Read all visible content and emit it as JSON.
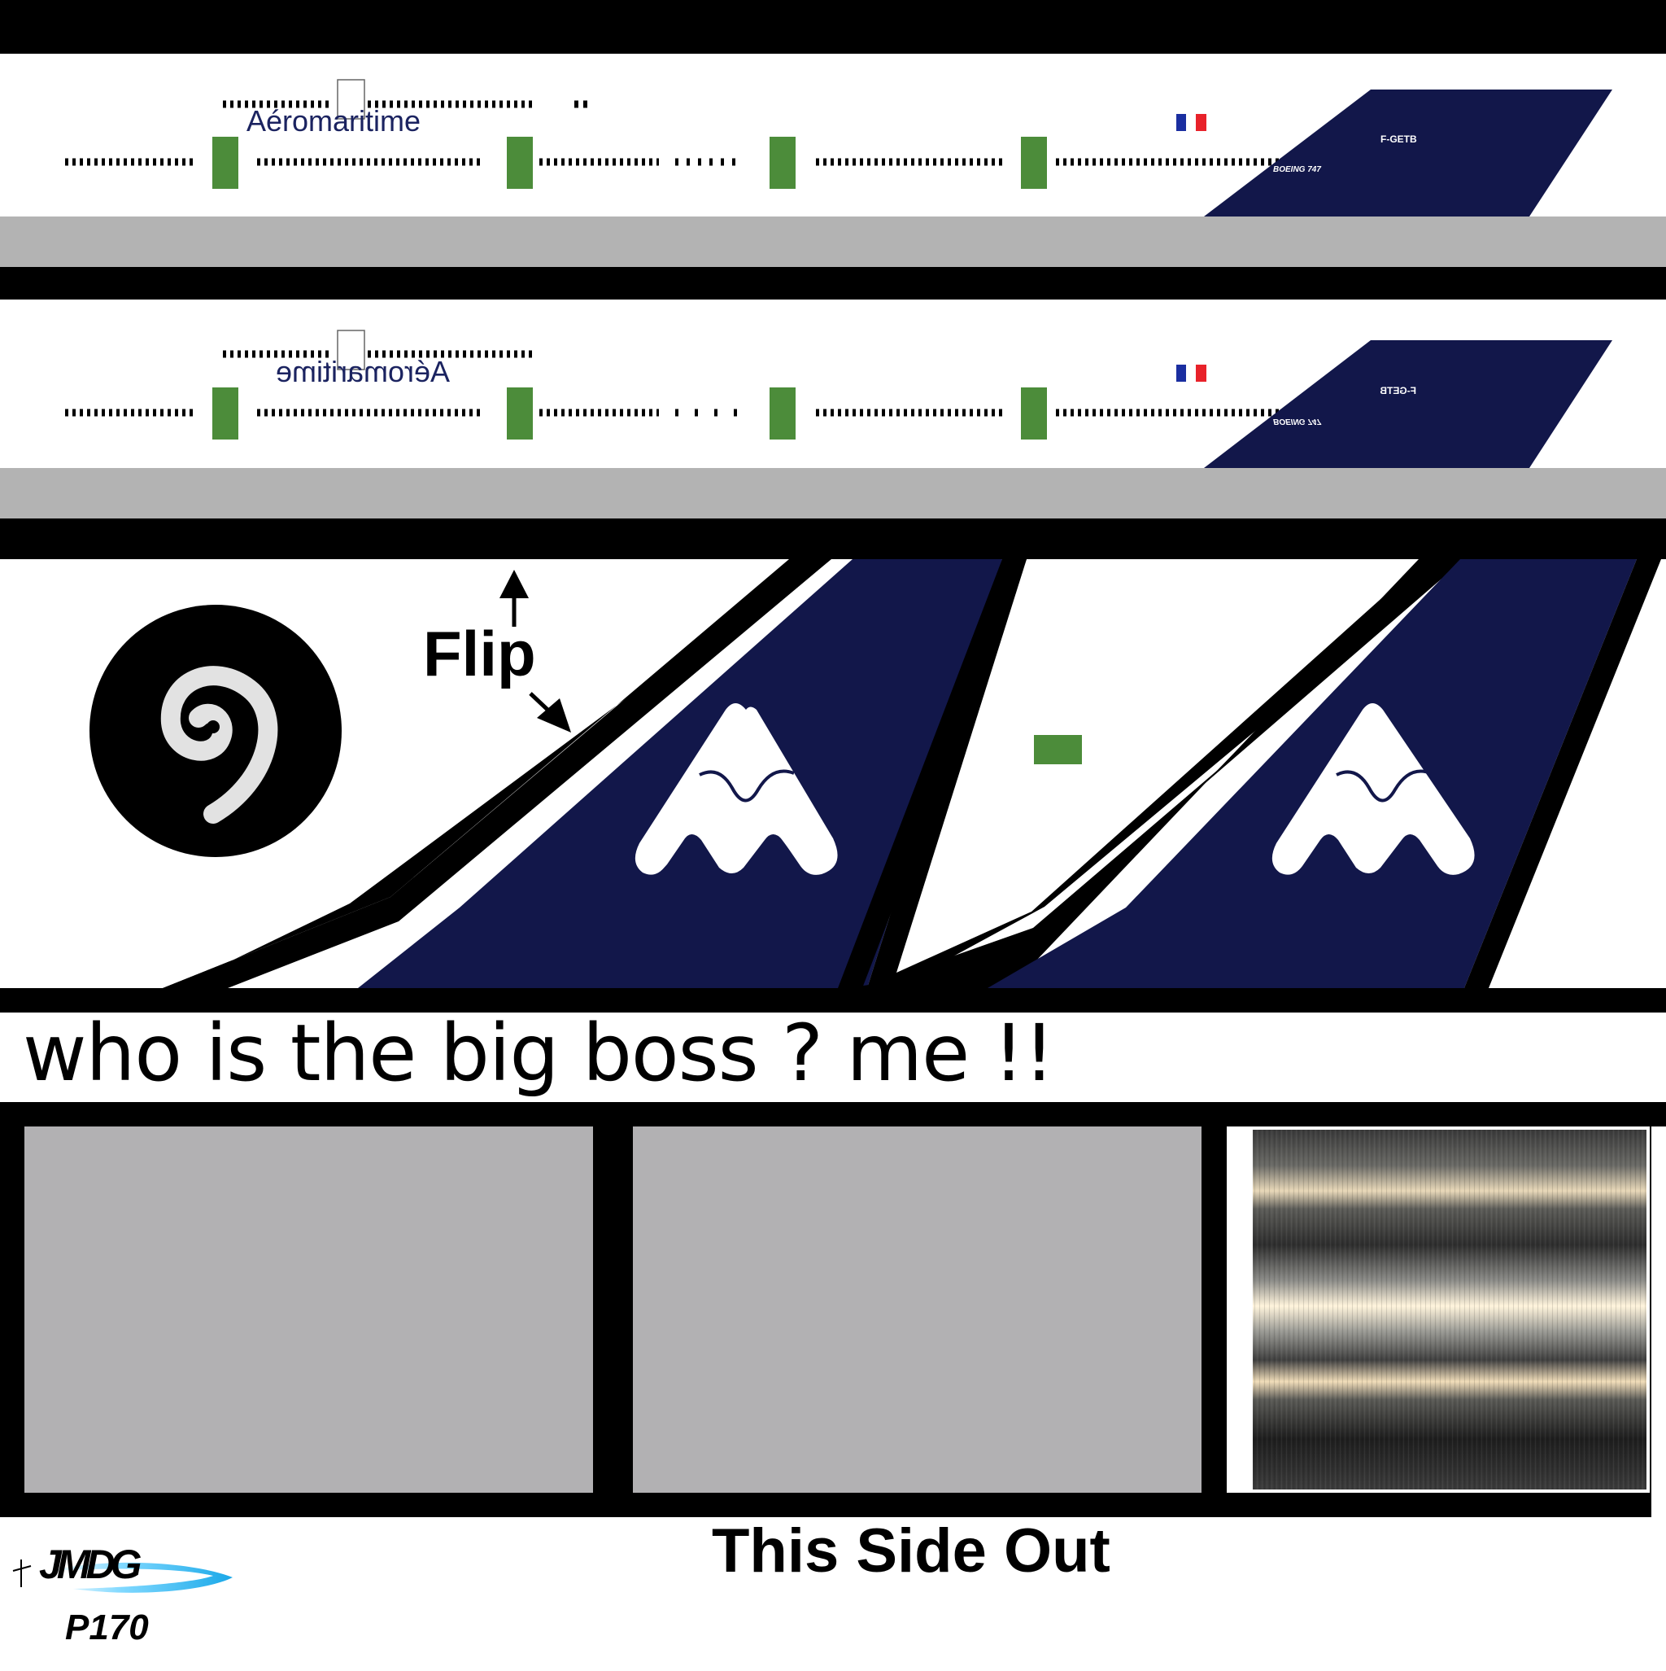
{
  "fuselage": {
    "airline_name": "Aéromaritime",
    "registration": "F-GETB",
    "aircraft_model": "BOEING 747",
    "flag": "france-flag-icon"
  },
  "tail": {
    "flip_label": "Flip",
    "logo": "aeromaritime-mountain-logo",
    "engine_spinner": "spiral-spinner-icon"
  },
  "caption": "who is  the big boss ? me !!",
  "footer": {
    "side_label": "This Side Out",
    "author_logo": "JMDG",
    "model_code": "P170"
  },
  "colors": {
    "tail_navy": "#12174a",
    "door_green": "#4c8c3a",
    "belly_gray": "#b3b3b3",
    "panel_gray": "#b2b1b3",
    "brand_text": "#1b2360"
  }
}
